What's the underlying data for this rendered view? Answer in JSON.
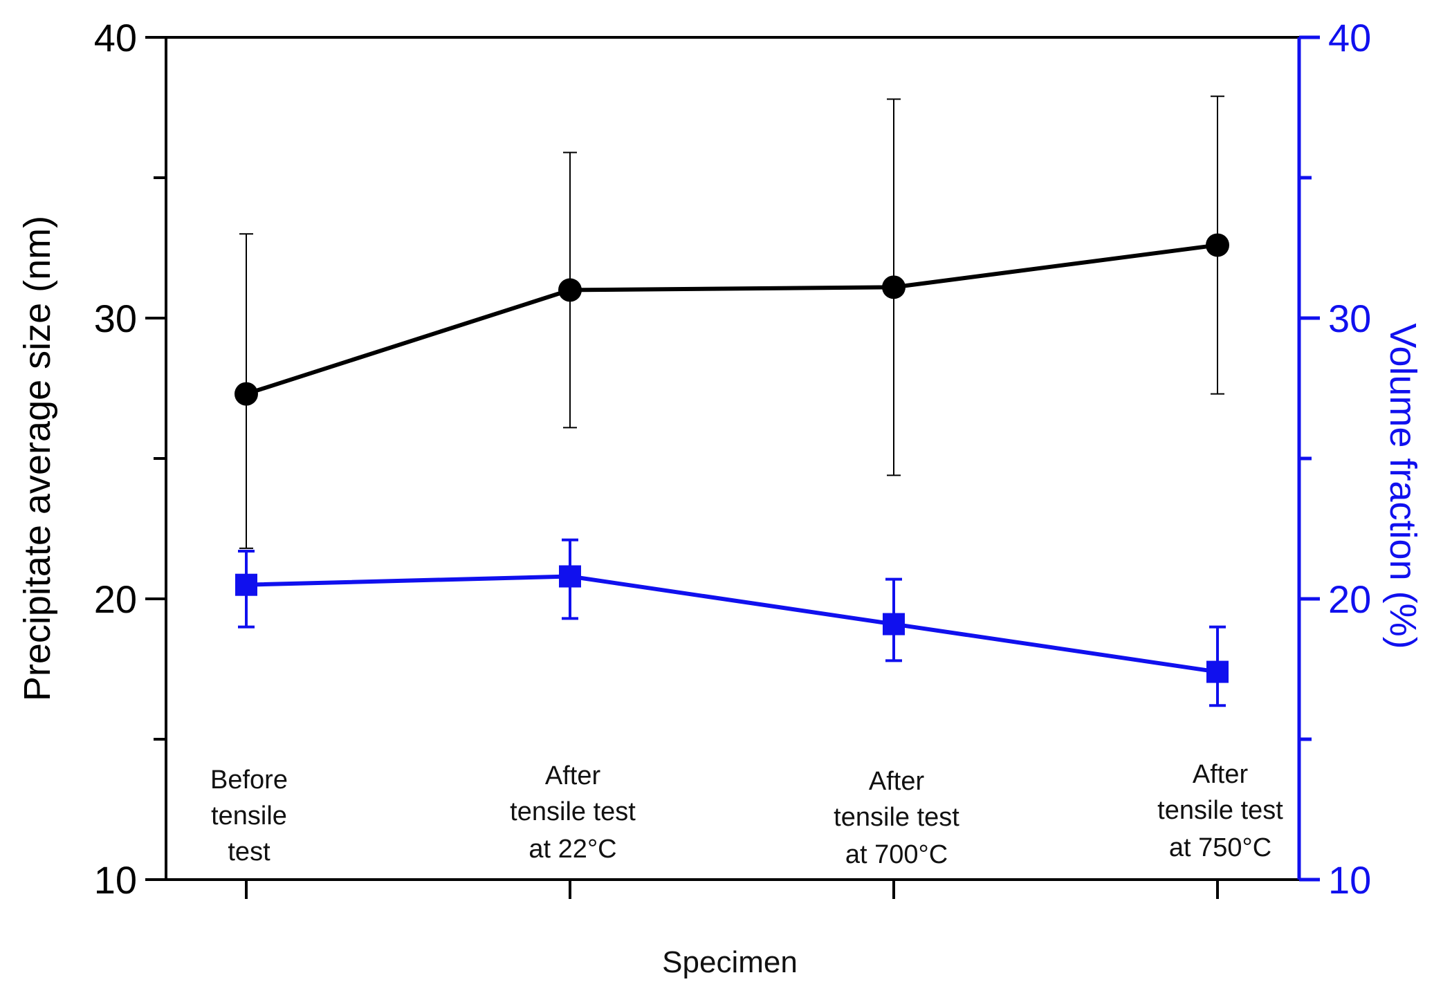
{
  "chart_data": {
    "type": "line",
    "xlabel": "Specimen",
    "ylabel": "Precipitate average size (nm)",
    "y2label": "Volume fraction (%)",
    "categories": [
      [
        "Before",
        "tensile",
        "test"
      ],
      [
        "After",
        "tensile test",
        "at 22°C"
      ],
      [
        "After",
        "tensile test",
        "at 700°C"
      ],
      [
        "After",
        "tensile test",
        "at 750°C"
      ]
    ],
    "ylim": [
      10,
      40
    ],
    "y2lim": [
      10,
      40
    ],
    "y_ticks": [
      "10",
      "20",
      "30",
      "40"
    ],
    "y2_ticks": [
      "10",
      "20",
      "30",
      "40"
    ],
    "minor_ticks": [
      15,
      25,
      35
    ],
    "series": [
      {
        "name": "Precipitate average size",
        "axis": "left",
        "color": "#000000",
        "marker": "circle",
        "values": [
          27.3,
          31.0,
          31.1,
          32.6
        ],
        "err_low": [
          5.5,
          4.9,
          6.7,
          5.3
        ],
        "err_high": [
          5.7,
          4.9,
          6.7,
          5.3
        ]
      },
      {
        "name": "Volume fraction",
        "axis": "right",
        "color": "#1010ee",
        "marker": "square",
        "values": [
          20.5,
          20.8,
          19.1,
          17.4
        ],
        "err_low": [
          1.5,
          1.5,
          1.3,
          1.2
        ],
        "err_high": [
          1.2,
          1.3,
          1.6,
          1.6
        ]
      }
    ]
  },
  "colors": {
    "axis_left": "#000000",
    "axis_right": "#1010ee",
    "background": "#ffffff"
  }
}
